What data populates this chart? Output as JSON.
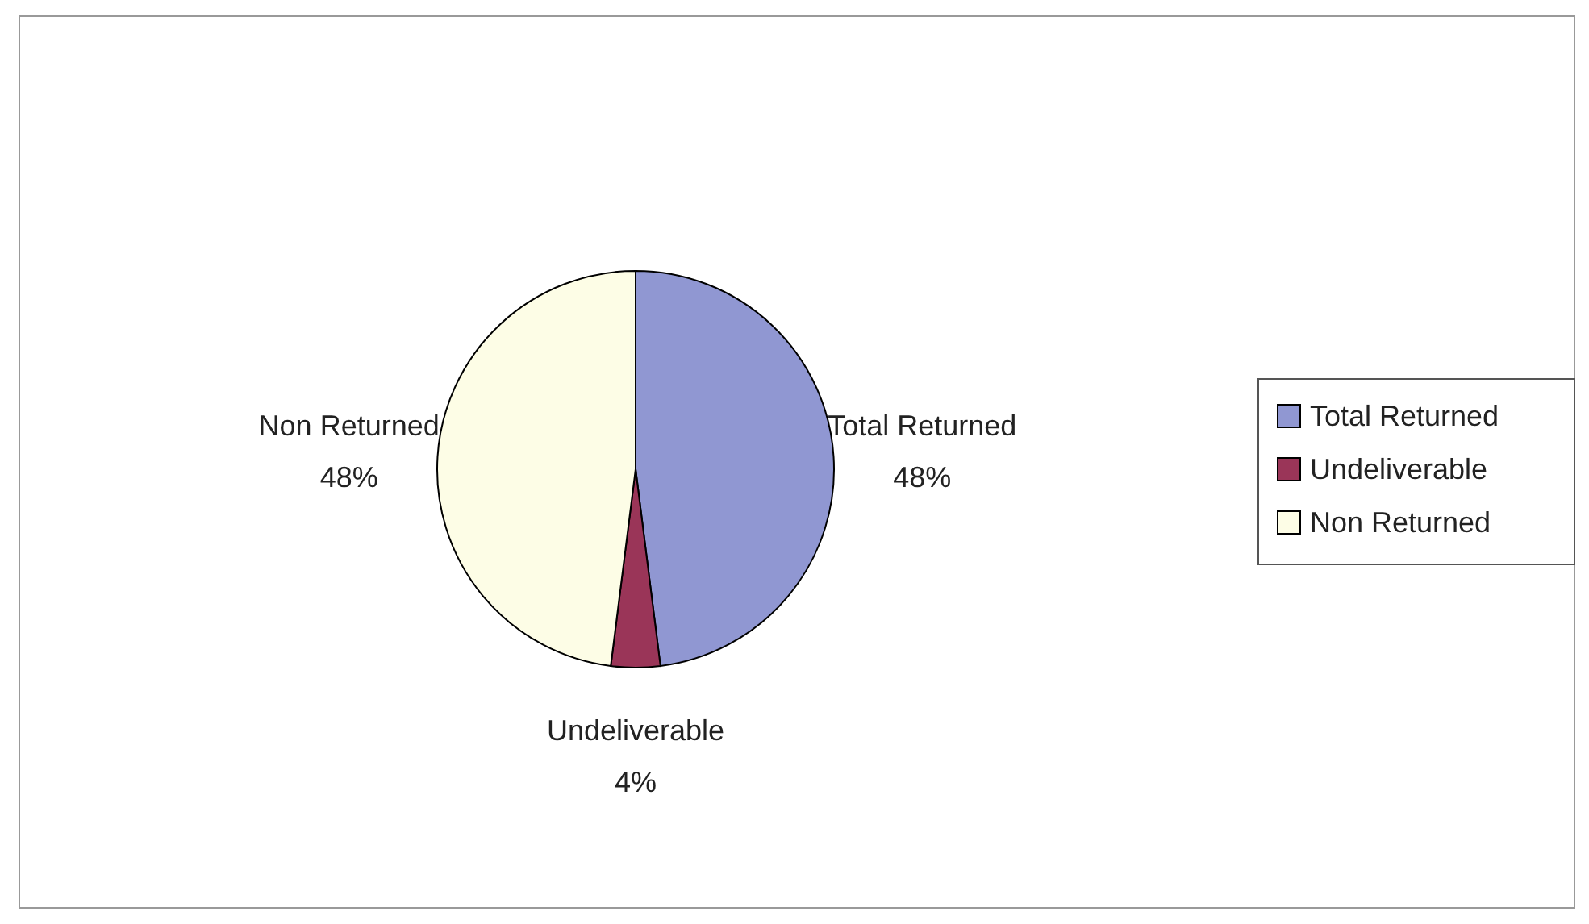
{
  "chart_data": {
    "type": "pie",
    "categories": [
      "Total Returned",
      "Undeliverable",
      "Non Returned"
    ],
    "values": [
      48,
      4,
      48
    ],
    "value_labels": [
      "48%",
      "4%",
      "48%"
    ],
    "colors": [
      "#9097d2",
      "#9a3558",
      "#fdfde6"
    ],
    "legend": "right"
  }
}
